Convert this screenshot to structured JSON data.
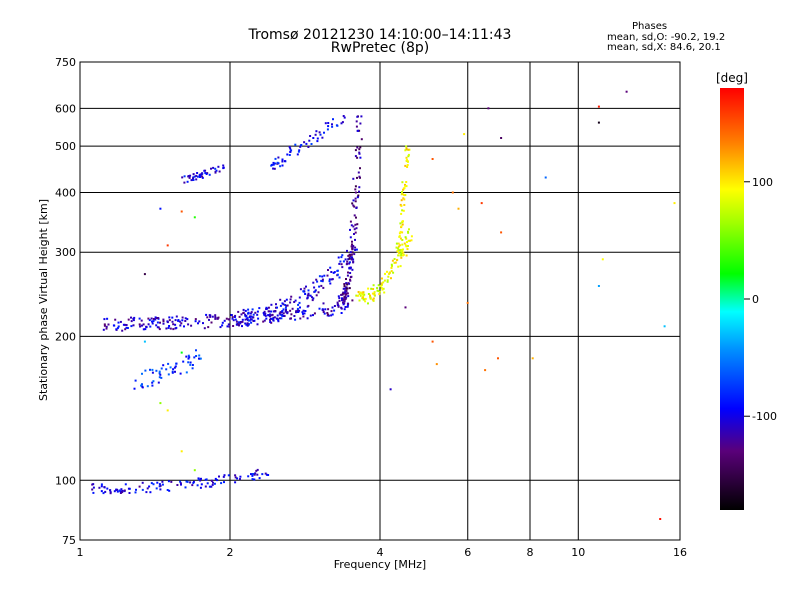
{
  "chart_data": {
    "type": "scatter",
    "title": "Tromsø 20121230 14:10:00–14:11:43",
    "subtitle": "RwPretec (8p)",
    "xlabel": "Frequency [MHz]",
    "ylabel": "Stationary phase Virtual Height [km]",
    "x_scale": "log",
    "y_scale": "log",
    "xlim": [
      1,
      16
    ],
    "ylim": [
      75,
      750
    ],
    "x_ticks": [
      1,
      2,
      4,
      6,
      8,
      10,
      16
    ],
    "x_tick_labels": [
      "1",
      "2",
      "4",
      "6",
      "8",
      "10",
      "16"
    ],
    "y_ticks": [
      75,
      100,
      200,
      300,
      400,
      500,
      600,
      750
    ],
    "y_tick_labels": [
      "75",
      "100",
      "200",
      "300",
      "400",
      "500",
      "600",
      "750"
    ],
    "grid": true,
    "phases_box": {
      "heading": "Phases",
      "line1": "mean, sd,O: -90.2, 19.2",
      "line2": "mean, sd,X: 84.6, 20.1"
    },
    "colorbar": {
      "label": "[deg]",
      "range": [
        -180,
        180
      ],
      "ticks": [
        100,
        0,
        -100
      ],
      "tick_labels": [
        "100",
        "0",
        "-100"
      ]
    },
    "traces": [
      {
        "name": "",
        "x_range": [
          1.12,
          3.5
        ],
        "h_range": [
          212,
          232
        ],
        "phase": -110,
        "count": 260,
        "spread": 0.04
      },
      {
        "name": "",
        "x_range": [
          2.0,
          3.55
        ],
        "h_range": [
          218,
          300
        ],
        "phase": -100,
        "count": 160,
        "spread": 0.05
      },
      {
        "name": "",
        "x_range": [
          3.35,
          3.65
        ],
        "h_range": [
          240,
          600
        ],
        "phase": -125,
        "count": 140,
        "spread": 0.03
      },
      {
        "name": "",
        "x_range": [
          3.6,
          4.6
        ],
        "h_range": [
          240,
          330
        ],
        "phase": 90,
        "count": 110,
        "spread": 0.04
      },
      {
        "name": "",
        "x_range": [
          4.35,
          4.55
        ],
        "h_range": [
          300,
          500
        ],
        "phase": 95,
        "count": 60,
        "spread": 0.02
      },
      {
        "name": "",
        "x_range": [
          1.6,
          1.95
        ],
        "h_range": [
          425,
          450
        ],
        "phase": -100,
        "count": 45,
        "spread": 0.02
      },
      {
        "name": "",
        "x_range": [
          2.4,
          3.4
        ],
        "h_range": [
          450,
          580
        ],
        "phase": -95,
        "count": 60,
        "spread": 0.04
      },
      {
        "name": "",
        "x_range": [
          1.3,
          1.75
        ],
        "h_range": [
          160,
          180
        ],
        "phase": -80,
        "count": 55,
        "spread": 0.05
      },
      {
        "name": "",
        "x_range": [
          1.05,
          2.4
        ],
        "h_range": [
          96,
          104
        ],
        "phase": -100,
        "count": 120,
        "spread": 0.03
      }
    ],
    "scattered_points": [
      [
        1.35,
        270,
        -150
      ],
      [
        1.45,
        370,
        -90
      ],
      [
        1.5,
        310,
        160
      ],
      [
        1.6,
        365,
        150
      ],
      [
        1.7,
        355,
        30
      ],
      [
        1.35,
        195,
        -30
      ],
      [
        1.45,
        145,
        60
      ],
      [
        1.5,
        140,
        100
      ],
      [
        1.6,
        115,
        100
      ],
      [
        1.7,
        105,
        60
      ],
      [
        1.6,
        185,
        20
      ],
      [
        4.2,
        155,
        -110
      ],
      [
        4.5,
        230,
        -130
      ],
      [
        5.1,
        195,
        150
      ],
      [
        5.2,
        175,
        130
      ],
      [
        5.1,
        470,
        150
      ],
      [
        5.6,
        400,
        140
      ],
      [
        5.75,
        370,
        120
      ],
      [
        5.9,
        530,
        100
      ],
      [
        6.0,
        235,
        140
      ],
      [
        6.4,
        380,
        160
      ],
      [
        6.6,
        600,
        -130
      ],
      [
        6.5,
        170,
        140
      ],
      [
        6.9,
        180,
        150
      ],
      [
        7.0,
        520,
        -140
      ],
      [
        7.0,
        330,
        150
      ],
      [
        8.1,
        180,
        120
      ],
      [
        8.6,
        430,
        -60
      ],
      [
        11.0,
        605,
        170
      ],
      [
        11.0,
        560,
        -170
      ],
      [
        11.2,
        290,
        95
      ],
      [
        11.0,
        255,
        -40
      ],
      [
        12.5,
        650,
        -130
      ],
      [
        14.6,
        83,
        175
      ],
      [
        14.9,
        210,
        -30
      ],
      [
        15.6,
        380,
        100
      ]
    ]
  }
}
